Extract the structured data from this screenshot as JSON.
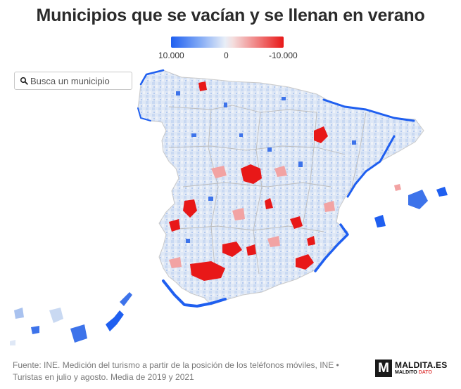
{
  "title": "Municipios que se vacían y se llenan en verano",
  "legend": {
    "left_label": "10.000",
    "mid_label": "0",
    "right_label": "-10.000",
    "low_color": "#1f5ff0",
    "mid_color": "#e8eef7",
    "high_color": "#e81818"
  },
  "search": {
    "placeholder": "Busca un municipio",
    "value": "",
    "icon": "search-icon"
  },
  "map": {
    "regions": [
      "Península",
      "Islas Baleares",
      "Islas Canarias"
    ],
    "hotspots_red": [
      "Madrid",
      "Sevilla",
      "Córdoba",
      "Zaragoza",
      "Badajoz",
      "Murcia"
    ],
    "hotspots_blue": [
      "Costa de Cádiz",
      "Costa del Sol",
      "Costa Brava",
      "Costa Blanca",
      "Cantábrico",
      "Baleares",
      "Canarias"
    ]
  },
  "source": "Fuente: INE. Medición del turismo a partir de la posición de los teléfonos móviles, INE • Turistas en julio y agosto. Media de 2019 y 2021",
  "logo": {
    "mark": "M",
    "name": "MALDITA.ES",
    "sub_prefix": "MALDITO",
    "sub_accent": "DATO"
  }
}
